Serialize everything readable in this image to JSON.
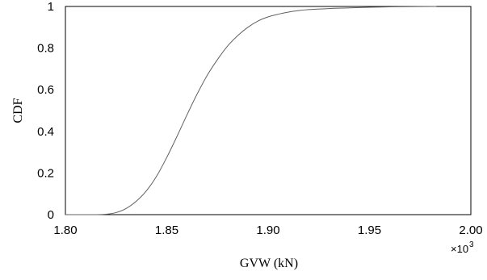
{
  "chart_data": {
    "type": "line",
    "xlabel": "GVW (kN)",
    "ylabel": "CDF",
    "x_multiplier": "×10",
    "x_multiplier_exp": "3",
    "xlim": [
      1.8,
      2.0
    ],
    "ylim": [
      0,
      1
    ],
    "x_ticks": [
      "1.80",
      "1.85",
      "1.90",
      "1.95",
      "2.00"
    ],
    "y_ticks": [
      "0",
      "0.2",
      "0.4",
      "0.6",
      "0.8",
      "1"
    ],
    "grid": false,
    "series": [
      {
        "color": "#606060",
        "x": [
          1.8,
          1.81,
          1.815,
          1.82,
          1.825,
          1.83,
          1.835,
          1.84,
          1.845,
          1.85,
          1.855,
          1.86,
          1.865,
          1.87,
          1.875,
          1.88,
          1.885,
          1.89,
          1.895,
          1.9,
          1.905,
          1.91,
          1.915,
          1.92,
          1.93,
          1.94,
          1.95,
          1.96,
          1.97,
          1.983
        ],
        "y": [
          0.0,
          0.0,
          0.0,
          0.002,
          0.01,
          0.03,
          0.065,
          0.115,
          0.185,
          0.275,
          0.375,
          0.48,
          0.58,
          0.67,
          0.745,
          0.81,
          0.86,
          0.9,
          0.93,
          0.95,
          0.963,
          0.973,
          0.98,
          0.985,
          0.99,
          0.993,
          0.996,
          0.998,
          0.999,
          1.0
        ]
      }
    ]
  }
}
